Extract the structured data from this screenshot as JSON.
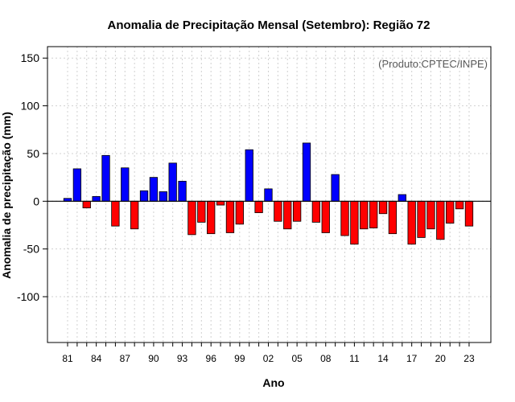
{
  "chart_data": {
    "type": "bar",
    "title": "Anomalia de Precipitação Mensal (Setembro): Região 72",
    "xlabel": "Ano",
    "ylabel": "Anomalia de precipitação (mm)",
    "credit": "(Produto:CPTEC/INPE)",
    "ylim": [
      -148,
      162
    ],
    "yticks": [
      -100,
      -50,
      0,
      50,
      100,
      150
    ],
    "xtick_labels": [
      "81",
      "84",
      "87",
      "90",
      "93",
      "96",
      "99",
      "02",
      "05",
      "08",
      "11",
      "14",
      "17",
      "20",
      "23"
    ],
    "xtick_every": 3,
    "categories": [
      "1981",
      "1982",
      "1983",
      "1984",
      "1985",
      "1986",
      "1987",
      "1988",
      "1989",
      "1990",
      "1991",
      "1992",
      "1993",
      "1994",
      "1995",
      "1996",
      "1997",
      "1998",
      "1999",
      "2000",
      "2001",
      "2002",
      "2003",
      "2004",
      "2005",
      "2006",
      "2007",
      "2008",
      "2009",
      "2010",
      "2011",
      "2012",
      "2013",
      "2014",
      "2015",
      "2016",
      "2017",
      "2018",
      "2019",
      "2020",
      "2021",
      "2022",
      "2023"
    ],
    "values": [
      3,
      34,
      -7,
      5,
      48,
      -26,
      35,
      -29,
      11,
      25,
      10,
      40,
      21,
      -35,
      -22,
      -34,
      -4,
      -33,
      -24,
      54,
      -12,
      13,
      -21,
      -29,
      -21,
      61,
      -22,
      -33,
      28,
      -36,
      -45,
      -29,
      -28,
      -13,
      -34,
      7,
      -45,
      -38,
      -29,
      -40,
      -23,
      -8,
      -26
    ],
    "colors": {
      "positive": "#0000ff",
      "negative": "#ff0000",
      "grid": "#d0d0d0",
      "axis": "#000000",
      "zero_line": "#000000"
    },
    "grid": true
  }
}
